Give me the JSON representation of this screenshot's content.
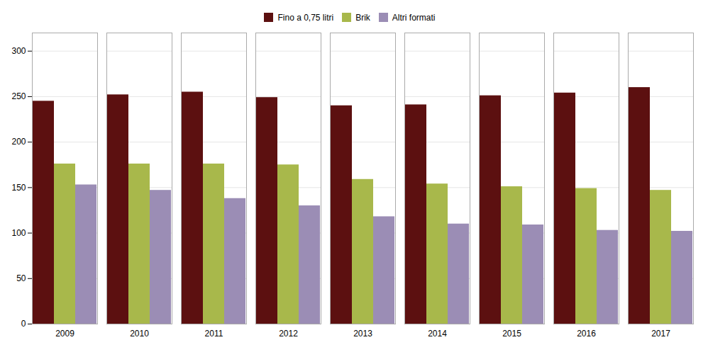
{
  "chart_data": {
    "type": "bar",
    "categories": [
      "2009",
      "2010",
      "2011",
      "2012",
      "2013",
      "2014",
      "2015",
      "2016",
      "2017"
    ],
    "series": [
      {
        "name": "Fino a 0,75 litri",
        "color": "#5C1010",
        "values": [
          245,
          252,
          255,
          249,
          240,
          241,
          251,
          254,
          260
        ]
      },
      {
        "name": "Brik",
        "color": "#A8B84B",
        "values": [
          176,
          176,
          176,
          175,
          159,
          154,
          151,
          149,
          147
        ]
      },
      {
        "name": "Altri formati",
        "color": "#9B8DB5",
        "values": [
          153,
          147,
          138,
          130,
          118,
          110,
          109,
          103,
          102
        ]
      }
    ],
    "ylim": [
      0,
      320
    ],
    "yticks": [
      0,
      50,
      100,
      150,
      200,
      250,
      300
    ],
    "grid": true,
    "legend": "top"
  }
}
